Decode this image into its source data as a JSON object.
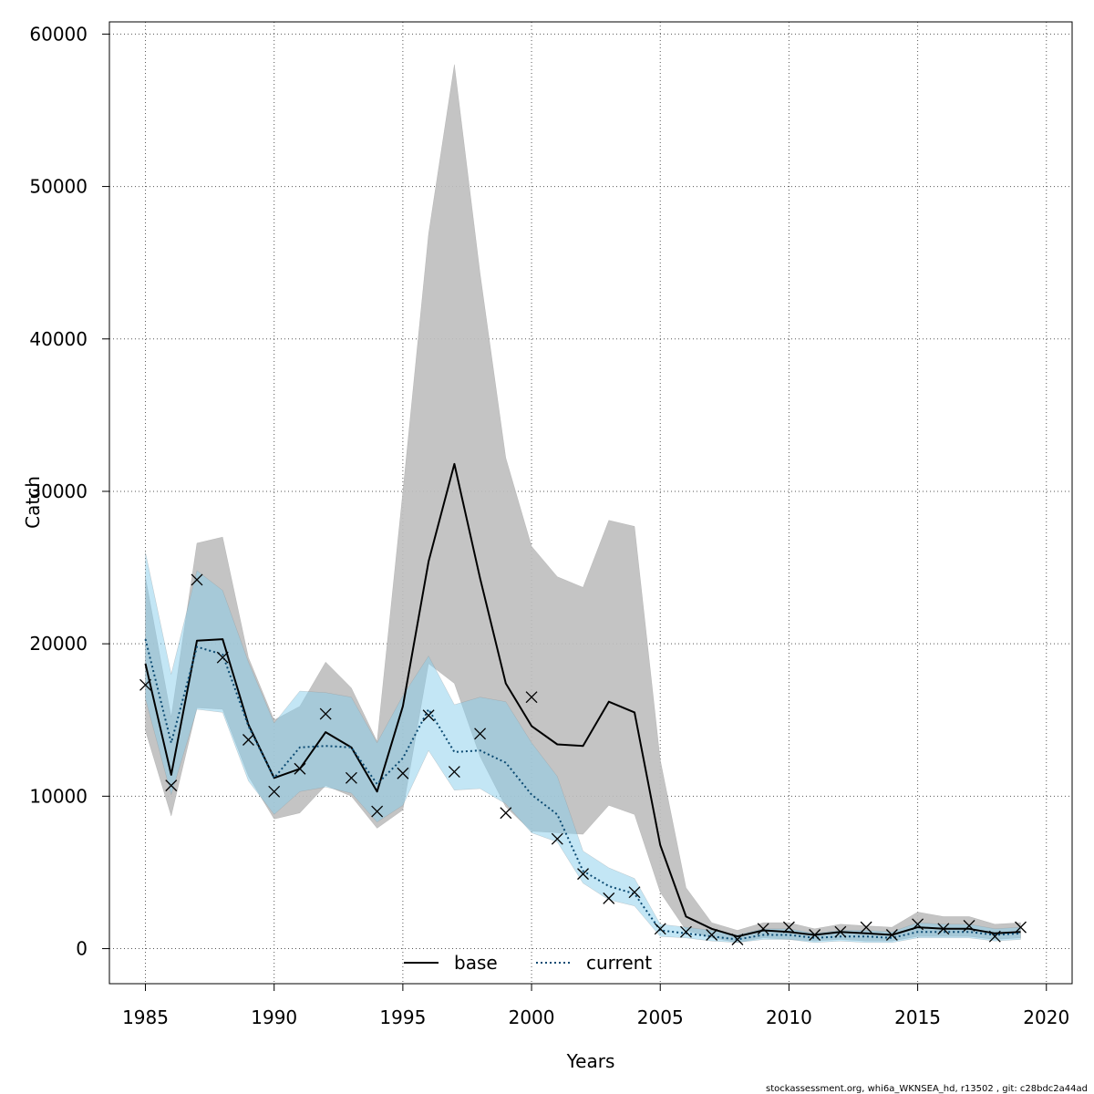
{
  "chart_data": {
    "type": "line",
    "xlabel": "Years",
    "ylabel": "Catch",
    "xlim": [
      1983.6,
      2021.0
    ],
    "ylim": [
      -2300,
      60800
    ],
    "x_ticks": [
      "1985",
      "1990",
      "1995",
      "2000",
      "2005",
      "2010",
      "2015",
      "2020"
    ],
    "y_ticks": [
      "0",
      "10000",
      "20000",
      "30000",
      "40000",
      "50000",
      "60000"
    ],
    "grid": true,
    "legend_position": "bottom",
    "x": [
      1985,
      1986,
      1987,
      1988,
      1989,
      1990,
      1991,
      1992,
      1993,
      1994,
      1995,
      1996,
      1997,
      1998,
      1999,
      2000,
      2001,
      2002,
      2003,
      2004,
      2005,
      2006,
      2007,
      2008,
      2009,
      2010,
      2011,
      2012,
      2013,
      2014,
      2015,
      2016,
      2017,
      2018,
      2019
    ],
    "series": [
      {
        "name": "base",
        "style": "solid",
        "line_color": "#000000",
        "band_color": "#bebebe",
        "values": [
          18700,
          11400,
          20200,
          20300,
          14700,
          11200,
          11800,
          14200,
          13200,
          10300,
          15900,
          25400,
          31800,
          24300,
          17400,
          14600,
          13400,
          13300,
          16200,
          15500,
          6800,
          2100,
          1300,
          800,
          1200,
          1100,
          900,
          1100,
          1000,
          900,
          1400,
          1300,
          1300,
          1000,
          1100
        ],
        "lower": [
          14300,
          8700,
          15800,
          15700,
          11300,
          8500,
          8900,
          10700,
          10000,
          7900,
          9100,
          18700,
          17400,
          12600,
          9300,
          7700,
          7600,
          7500,
          9400,
          8800,
          3700,
          1200,
          700,
          400,
          700,
          600,
          500,
          600,
          500,
          500,
          800,
          800,
          800,
          600,
          700
        ],
        "upper": [
          24400,
          15200,
          26600,
          27000,
          19100,
          15000,
          15900,
          18800,
          17100,
          13600,
          30000,
          46900,
          58000,
          44300,
          32200,
          26400,
          24400,
          23700,
          28100,
          27700,
          12400,
          4000,
          1700,
          1200,
          1700,
          1700,
          1300,
          1600,
          1500,
          1400,
          2400,
          2100,
          2100,
          1600,
          1700
        ]
      },
      {
        "name": "current",
        "style": "dotted",
        "line_color": "#0b4a72",
        "band_color": "#87ceeb",
        "values": [
          20300,
          13500,
          19800,
          19300,
          14600,
          11200,
          13200,
          13300,
          13200,
          10800,
          12500,
          15700,
          12900,
          13000,
          12200,
          10100,
          8800,
          5100,
          4100,
          3600,
          1200,
          1000,
          800,
          600,
          900,
          900,
          700,
          800,
          800,
          700,
          1100,
          1100,
          1100,
          900,
          1000
        ],
        "lower": [
          16400,
          10100,
          15700,
          15500,
          11000,
          8800,
          10300,
          10600,
          10200,
          8300,
          9400,
          13000,
          10400,
          10500,
          9500,
          7600,
          7000,
          4300,
          3200,
          2800,
          800,
          700,
          500,
          400,
          600,
          600,
          400,
          500,
          400,
          400,
          700,
          700,
          700,
          500,
          600
        ],
        "upper": [
          26000,
          18000,
          24800,
          23500,
          18800,
          14800,
          16900,
          16800,
          16500,
          13500,
          16600,
          19200,
          16000,
          16500,
          16200,
          13500,
          11300,
          6400,
          5300,
          4600,
          1600,
          1400,
          1200,
          900,
          1300,
          1300,
          1000,
          1200,
          1200,
          1100,
          1700,
          1600,
          1600,
          1300,
          1400
        ]
      }
    ],
    "observed": {
      "marker": "x",
      "x": [
        1985,
        1986,
        1987,
        1988,
        1989,
        1990,
        1991,
        1992,
        1993,
        1994,
        1995,
        1996,
        1997,
        1998,
        1999,
        2000,
        2001,
        2002,
        2003,
        2004,
        2005,
        2006,
        2007,
        2008,
        2009,
        2010,
        2011,
        2012,
        2013,
        2014,
        2015,
        2016,
        2017,
        2018,
        2019
      ],
      "values": [
        17300,
        10700,
        24200,
        19100,
        13700,
        10300,
        11800,
        15400,
        11200,
        9000,
        11500,
        15300,
        11600,
        14100,
        8900,
        16500,
        7200,
        4900,
        3300,
        3700,
        1300,
        1100,
        900,
        600,
        1300,
        1400,
        900,
        1100,
        1400,
        900,
        1600,
        1300,
        1500,
        800,
        1400
      ]
    },
    "footer": "stockassessment.org, whi6a_WKNSEA_hd, r13502 , git: c28bdc2a44ad"
  }
}
